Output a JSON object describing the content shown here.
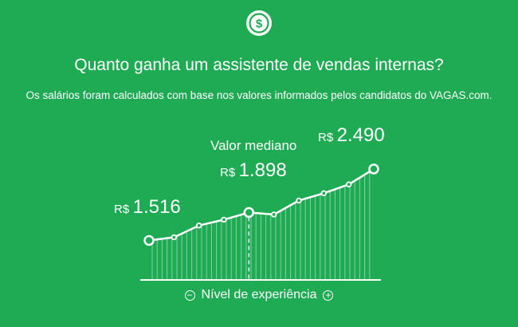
{
  "header": {
    "icon": "dollar-circle-icon",
    "title": "Quanto ganha um assistente de vendas internas?",
    "subtitle": "Os salários foram calculados com base nos valores informados pelos candidatos do VAGAS.com."
  },
  "chart_data": {
    "type": "area",
    "currency": "R$",
    "points": [
      1516,
      1560,
      1720,
      1800,
      1898,
      1870,
      2060,
      2160,
      2280,
      2490
    ],
    "highlight_indices": [
      0,
      4,
      9
    ],
    "labels": {
      "low": "1.516",
      "median_caption": "Valor mediano",
      "median": "1.898",
      "high": "2.490"
    },
    "xlabel": "Nível de experiência",
    "median_index": 4
  },
  "footer": {
    "minus": "−",
    "plus": "+",
    "label": "Nível de experiência"
  },
  "colors": {
    "background": "#1faa54",
    "foreground": "#ffffff"
  }
}
